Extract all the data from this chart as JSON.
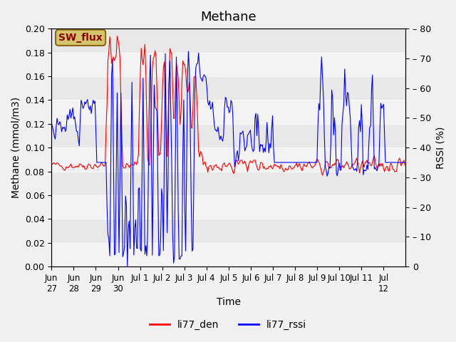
{
  "title": "Methane",
  "ylabel_left": "Methane (mmol/m3)",
  "ylabel_right": "RSSI (%)",
  "xlabel": "Time",
  "ylim_left": [
    0.0,
    0.2
  ],
  "ylim_right": [
    0,
    80
  ],
  "yticks_left": [
    0.0,
    0.02,
    0.04,
    0.06,
    0.08,
    0.1,
    0.12,
    0.14,
    0.16,
    0.18,
    0.2
  ],
  "yticks_right": [
    0,
    10,
    20,
    30,
    40,
    50,
    60,
    70,
    80
  ],
  "bg_color": "#e8e8e8",
  "plot_bg_color": "#e8e8e8",
  "sw_flux_label": "SW_flux",
  "legend_labels": [
    "li77_den",
    "li77_rssi"
  ],
  "line_colors": [
    "red",
    "blue"
  ],
  "annotation_bg": "#d4c46a",
  "annotation_text_color": "#8b0000"
}
